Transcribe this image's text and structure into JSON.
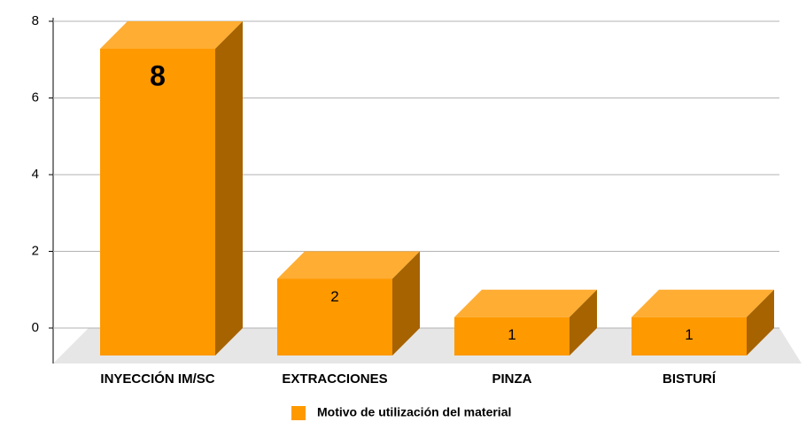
{
  "chart_data": {
    "type": "bar3d",
    "categories": [
      "INYECCIÓN IM/SC",
      "EXTRACCIONES",
      "PINZA",
      "BISTURÍ"
    ],
    "series": [
      {
        "name": "Motivo de utilización del material",
        "color": "#ff9900",
        "values": [
          8,
          2,
          1,
          1
        ]
      }
    ],
    "ylim": [
      0,
      8
    ],
    "yticks": [
      0,
      2,
      4,
      6,
      8
    ],
    "grid": true,
    "legend": "bottom"
  }
}
